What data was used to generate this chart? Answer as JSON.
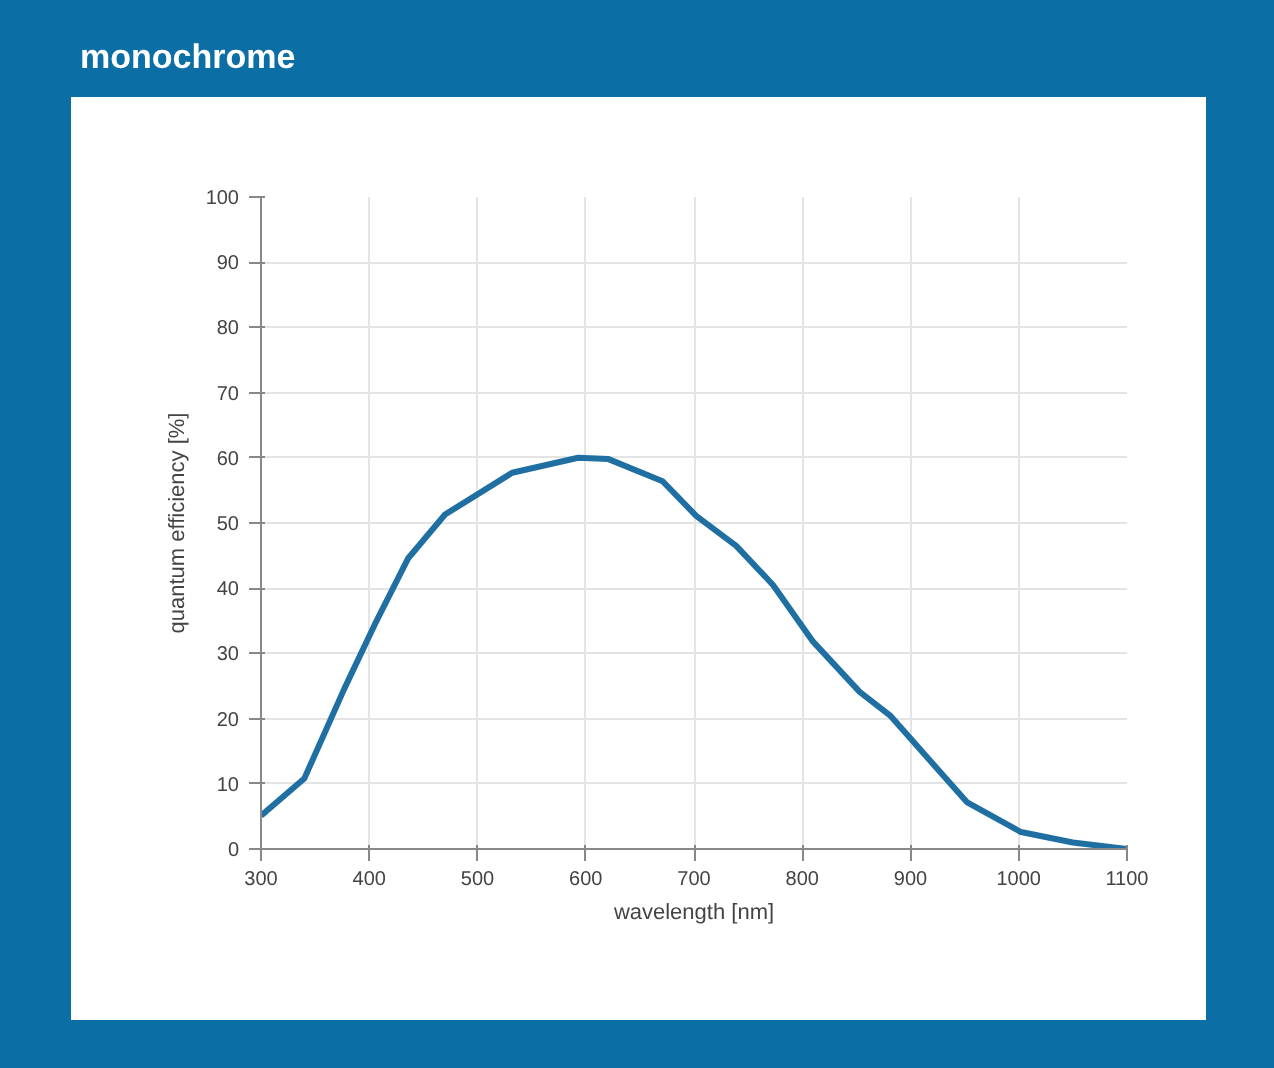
{
  "chart_data": {
    "type": "line",
    "title": "monochrome",
    "xlabel": "wavelength [nm]",
    "ylabel": "quantum efficiency [%]",
    "x": [
      300,
      340,
      377,
      405,
      436,
      470,
      532,
      593,
      621,
      671,
      702,
      739,
      773,
      810,
      853,
      881,
      952,
      1002,
      1050,
      1100
    ],
    "series": [
      {
        "color": "#1f6fa3",
        "values": [
          5.1,
          10.8,
          24.6,
          34.4,
          44.6,
          51.3,
          57.7,
          60,
          59.8,
          56.4,
          51.1,
          46.5,
          40.5,
          31.8,
          24.1,
          20.5,
          7.2,
          2.6,
          1.0,
          0
        ]
      }
    ],
    "xlim": [
      300,
      1100
    ],
    "ylim": [
      0,
      100
    ],
    "xticks": [
      300,
      400,
      500,
      600,
      700,
      800,
      900,
      1000,
      1100
    ],
    "yticks": [
      0,
      10,
      20,
      30,
      40,
      50,
      60,
      70,
      80,
      90,
      100
    ],
    "grid": true,
    "marker": "none",
    "line_style": "solid"
  }
}
